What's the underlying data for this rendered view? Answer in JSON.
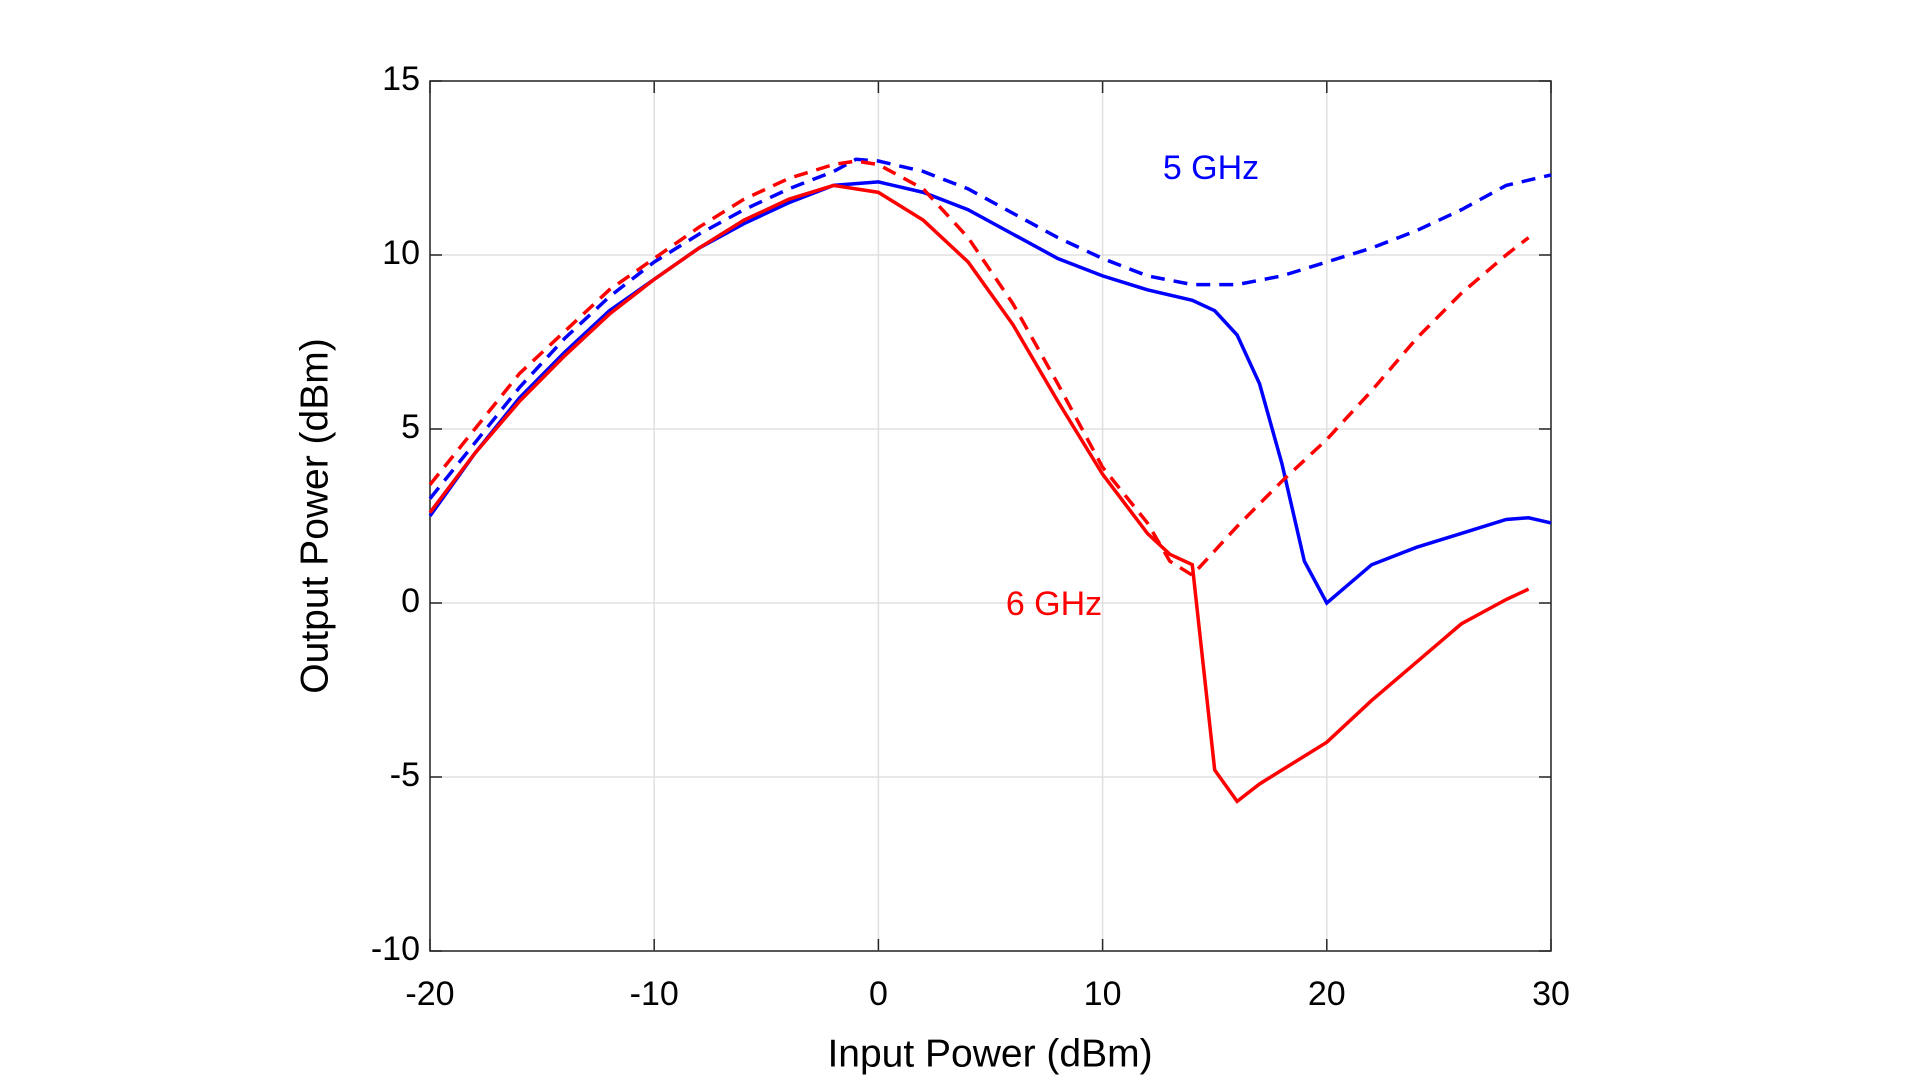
{
  "chart_data": {
    "type": "line",
    "xlabel": "Input Power (dBm)",
    "ylabel": "Output Power (dBm)",
    "xlim": [
      -20,
      30
    ],
    "ylim": [
      -10,
      15
    ],
    "xticks": [
      -20,
      -10,
      0,
      10,
      20,
      30
    ],
    "yticks": [
      -10,
      -5,
      0,
      5,
      10,
      15
    ],
    "grid": true,
    "annotations": [
      {
        "text": "5 GHz",
        "color": "#0000ff"
      },
      {
        "text": "6 GHz",
        "color": "#ff0000"
      }
    ],
    "series": [
      {
        "color": "#0000ff",
        "linestyle": "solid",
        "x": [
          -20,
          -18,
          -16,
          -14,
          -12,
          -10,
          -8,
          -6,
          -4,
          -2,
          0,
          2,
          4,
          6,
          8,
          10,
          12,
          14,
          15,
          16,
          17,
          18,
          19,
          20,
          22,
          24,
          26,
          28,
          29,
          30
        ],
        "values": [
          2.5,
          4.3,
          5.9,
          7.2,
          8.4,
          9.3,
          10.2,
          10.9,
          11.5,
          12.0,
          12.1,
          11.8,
          11.3,
          10.6,
          9.9,
          9.4,
          9.0,
          8.7,
          8.4,
          7.7,
          6.3,
          4.0,
          1.2,
          0.0,
          1.1,
          1.6,
          2.0,
          2.4,
          2.45,
          2.3
        ]
      },
      {
        "color": "#0000ff",
        "linestyle": "dashed",
        "x": [
          -20,
          -18,
          -16,
          -14,
          -12,
          -10,
          -8,
          -6,
          -4,
          -2,
          -1,
          0,
          2,
          4,
          6,
          8,
          10,
          12,
          14,
          16,
          18,
          20,
          22,
          24,
          26,
          28,
          30
        ],
        "values": [
          3.0,
          4.6,
          6.2,
          7.6,
          8.8,
          9.8,
          10.6,
          11.3,
          11.9,
          12.4,
          12.75,
          12.7,
          12.4,
          11.9,
          11.2,
          10.5,
          9.9,
          9.4,
          9.15,
          9.15,
          9.4,
          9.8,
          10.2,
          10.7,
          11.3,
          12.0,
          12.3
        ]
      },
      {
        "color": "#ff0000",
        "linestyle": "solid",
        "x": [
          -20,
          -18,
          -16,
          -14,
          -12,
          -10,
          -8,
          -6,
          -4,
          -2,
          0,
          2,
          4,
          6,
          8,
          10,
          12,
          13,
          14,
          15,
          16,
          17,
          18,
          20,
          21,
          22,
          24,
          26,
          28,
          29
        ],
        "values": [
          2.6,
          4.3,
          5.8,
          7.1,
          8.3,
          9.3,
          10.2,
          11.0,
          11.6,
          12.0,
          11.8,
          11.0,
          9.8,
          8.0,
          5.8,
          3.7,
          2.0,
          1.4,
          1.1,
          -4.8,
          -5.7,
          -5.2,
          -4.8,
          -4.0,
          -3.4,
          -2.8,
          -1.7,
          -0.6,
          0.1,
          0.4
        ]
      },
      {
        "color": "#ff0000",
        "linestyle": "dashed",
        "x": [
          -20,
          -18,
          -16,
          -14,
          -12,
          -10,
          -8,
          -6,
          -4,
          -2,
          -1,
          0,
          2,
          4,
          6,
          8,
          10,
          12,
          13,
          14,
          16,
          18,
          20,
          22,
          24,
          26,
          28,
          29
        ],
        "values": [
          3.4,
          5.0,
          6.6,
          7.8,
          9.0,
          9.9,
          10.8,
          11.6,
          12.2,
          12.6,
          12.7,
          12.6,
          11.9,
          10.5,
          8.6,
          6.3,
          3.9,
          2.3,
          1.2,
          0.8,
          2.2,
          3.5,
          4.7,
          6.1,
          7.6,
          8.9,
          10.0,
          10.5
        ]
      }
    ]
  }
}
